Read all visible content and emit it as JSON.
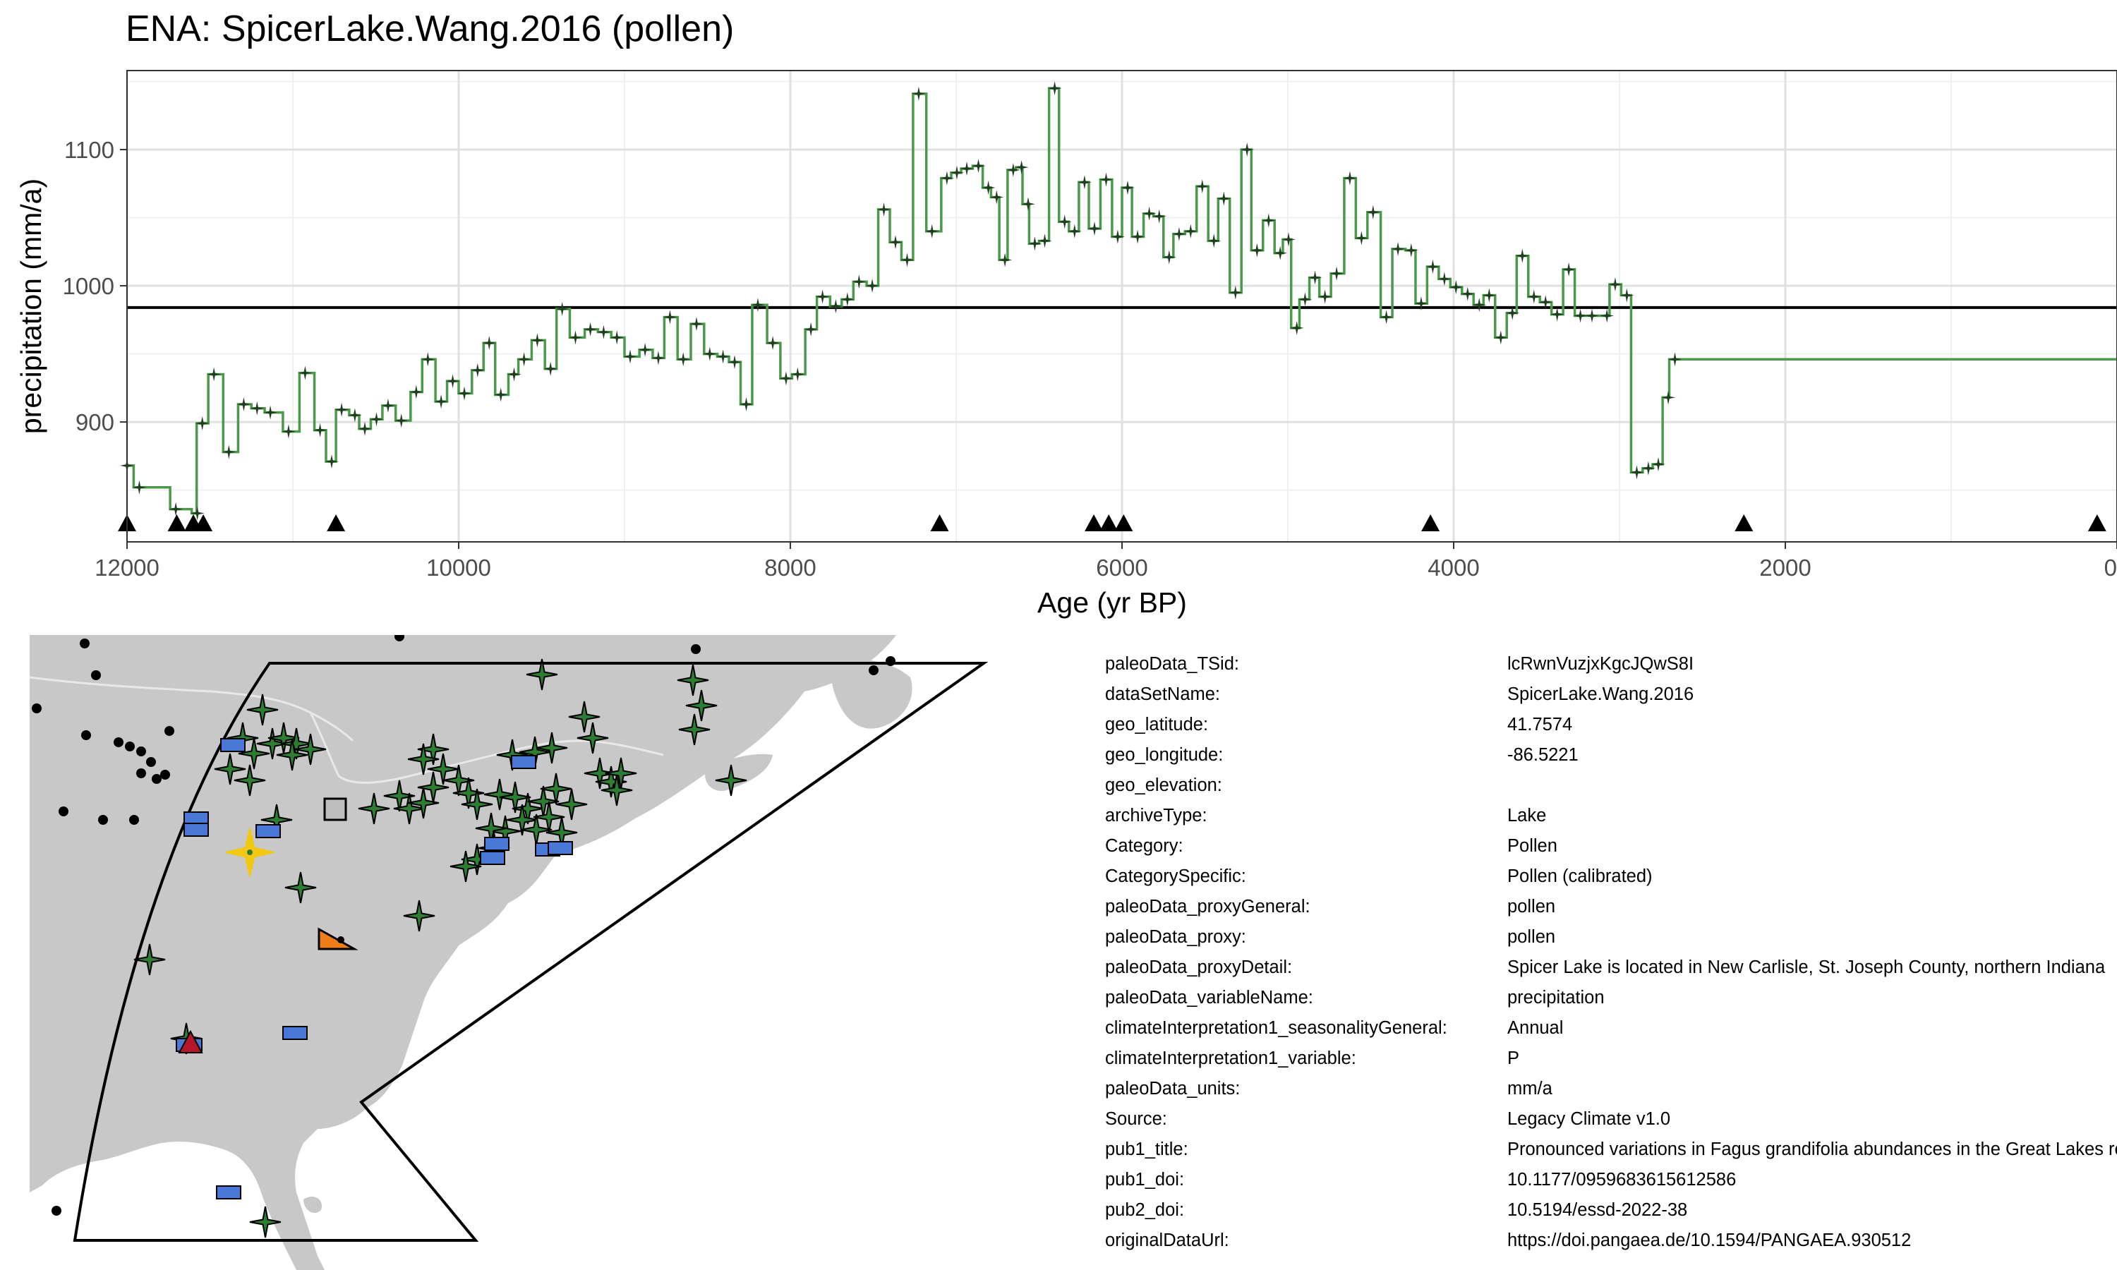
{
  "chart_data": {
    "type": "line",
    "title": "ENA: SpicerLake.Wang.2016 (pollen)",
    "xlabel": "Age (yr BP)",
    "ylabel": "precipitation (mm/a)",
    "xlim": [
      12000,
      0
    ],
    "ylim": [
      812,
      1158
    ],
    "x_reversed": true,
    "xticks": [
      12000,
      10000,
      8000,
      6000,
      4000,
      2000,
      0
    ],
    "yticks": [
      900,
      1000,
      1100
    ],
    "grid": true,
    "reference_line": 984,
    "step_color": "#4a9a4a",
    "point_color": "#1f3d1f",
    "series": [
      {
        "values": [
          [
            12000,
            868
          ],
          [
            11960,
            852
          ],
          [
            11740,
            836
          ],
          [
            11610,
            833
          ],
          [
            11580,
            899
          ],
          [
            11510,
            935
          ],
          [
            11420,
            878
          ],
          [
            11330,
            913
          ],
          [
            11250,
            910
          ],
          [
            11170,
            907
          ],
          [
            11060,
            893
          ],
          [
            10960,
            936
          ],
          [
            10870,
            894
          ],
          [
            10800,
            871
          ],
          [
            10740,
            909
          ],
          [
            10660,
            905
          ],
          [
            10600,
            895
          ],
          [
            10530,
            902
          ],
          [
            10460,
            912
          ],
          [
            10380,
            901
          ],
          [
            10290,
            922
          ],
          [
            10220,
            946
          ],
          [
            10140,
            915
          ],
          [
            10070,
            930
          ],
          [
            10000,
            921
          ],
          [
            9920,
            938
          ],
          [
            9850,
            958
          ],
          [
            9780,
            920
          ],
          [
            9700,
            935
          ],
          [
            9640,
            946
          ],
          [
            9560,
            960
          ],
          [
            9480,
            939
          ],
          [
            9410,
            983
          ],
          [
            9330,
            962
          ],
          [
            9240,
            968
          ],
          [
            9160,
            966
          ],
          [
            9080,
            962
          ],
          [
            9000,
            948
          ],
          [
            8910,
            953
          ],
          [
            8830,
            947
          ],
          [
            8760,
            977
          ],
          [
            8680,
            946
          ],
          [
            8600,
            972
          ],
          [
            8520,
            950
          ],
          [
            8440,
            948
          ],
          [
            8370,
            944
          ],
          [
            8300,
            913
          ],
          [
            8230,
            986
          ],
          [
            8140,
            958
          ],
          [
            8060,
            932
          ],
          [
            7990,
            935
          ],
          [
            7910,
            968
          ],
          [
            7840,
            992
          ],
          [
            7760,
            985
          ],
          [
            7690,
            990
          ],
          [
            7620,
            1003
          ],
          [
            7540,
            1000
          ],
          [
            7470,
            1056
          ],
          [
            7400,
            1032
          ],
          [
            7330,
            1019
          ],
          [
            7260,
            1141
          ],
          [
            7180,
            1040
          ],
          [
            7090,
            1079
          ],
          [
            7030,
            1083
          ],
          [
            6970,
            1086
          ],
          [
            6900,
            1088
          ],
          [
            6840,
            1072
          ],
          [
            6790,
            1065
          ],
          [
            6740,
            1019
          ],
          [
            6690,
            1085
          ],
          [
            6640,
            1087
          ],
          [
            6600,
            1060
          ],
          [
            6560,
            1031
          ],
          [
            6500,
            1033
          ],
          [
            6440,
            1145
          ],
          [
            6380,
            1047
          ],
          [
            6320,
            1040
          ],
          [
            6260,
            1076
          ],
          [
            6200,
            1042
          ],
          [
            6130,
            1078
          ],
          [
            6060,
            1036
          ],
          [
            6000,
            1072
          ],
          [
            5940,
            1036
          ],
          [
            5870,
            1053
          ],
          [
            5810,
            1051
          ],
          [
            5750,
            1021
          ],
          [
            5690,
            1038
          ],
          [
            5620,
            1040
          ],
          [
            5550,
            1073
          ],
          [
            5480,
            1033
          ],
          [
            5420,
            1064
          ],
          [
            5350,
            995
          ],
          [
            5280,
            1100
          ],
          [
            5220,
            1026
          ],
          [
            5150,
            1048
          ],
          [
            5080,
            1024
          ],
          [
            5030,
            1034
          ],
          [
            4980,
            969
          ],
          [
            4930,
            990
          ],
          [
            4870,
            1006
          ],
          [
            4810,
            992
          ],
          [
            4740,
            1009
          ],
          [
            4660,
            1079
          ],
          [
            4590,
            1035
          ],
          [
            4520,
            1054
          ],
          [
            4440,
            977
          ],
          [
            4370,
            1027
          ],
          [
            4290,
            1026
          ],
          [
            4230,
            987
          ],
          [
            4160,
            1014
          ],
          [
            4090,
            1005
          ],
          [
            4020,
            999
          ],
          [
            3950,
            994
          ],
          [
            3880,
            986
          ],
          [
            3820,
            993
          ],
          [
            3750,
            962
          ],
          [
            3680,
            980
          ],
          [
            3620,
            1022
          ],
          [
            3550,
            992
          ],
          [
            3480,
            988
          ],
          [
            3410,
            979
          ],
          [
            3340,
            1012
          ],
          [
            3270,
            978
          ],
          [
            3200,
            978
          ],
          [
            3110,
            978
          ],
          [
            3060,
            1001
          ],
          [
            2990,
            993
          ],
          [
            2930,
            863
          ],
          [
            2860,
            866
          ],
          [
            2800,
            869
          ],
          [
            2740,
            918
          ],
          [
            2700,
            946
          ]
        ]
      }
    ],
    "age_markers": [
      12000,
      11700,
      11600,
      11540,
      10740,
      7100,
      6170,
      6080,
      5990,
      4140,
      2250,
      120
    ]
  },
  "colors": {
    "map_land": "#c8c8c8",
    "map_border": "#e8e8e8",
    "marker_green": "#2e7d32",
    "marker_blue": "#4a78d6",
    "highlight_star": "#f2c811",
    "marker_orange": "#ef7d17",
    "marker_red": "#b5162a"
  },
  "metadata": [
    {
      "key": "paleoData_TSid:",
      "value": "lcRwnVuzjxKgcJQwS8I"
    },
    {
      "key": "dataSetName:",
      "value": "SpicerLake.Wang.2016"
    },
    {
      "key": "geo_latitude:",
      "value": "41.7574"
    },
    {
      "key": "geo_longitude:",
      "value": "-86.5221"
    },
    {
      "key": "geo_elevation:",
      "value": ""
    },
    {
      "key": "archiveType:",
      "value": "Lake"
    },
    {
      "key": "Category:",
      "value": "Pollen"
    },
    {
      "key": "CategorySpecific:",
      "value": "Pollen (calibrated)"
    },
    {
      "key": "paleoData_proxyGeneral:",
      "value": "pollen"
    },
    {
      "key": "paleoData_proxy:",
      "value": "pollen"
    },
    {
      "key": "paleoData_proxyDetail:",
      "value": "Spicer Lake is located in New Carlisle, St. Joseph County, northern Indiana"
    },
    {
      "key": "paleoData_variableName:",
      "value": "precipitation"
    },
    {
      "key": "climateInterpretation1_seasonalityGeneral:",
      "value": "Annual"
    },
    {
      "key": "climateInterpretation1_variable:",
      "value": "P"
    },
    {
      "key": "paleoData_units:",
      "value": "mm/a"
    },
    {
      "key": "Source:",
      "value": "Legacy Climate v1.0"
    },
    {
      "key": "pub1_title:",
      "value": "Pronounced variations in Fagus grandifolia abundances in the Great Lakes region during the Holocene"
    },
    {
      "key": "pub1_doi:",
      "value": "10.1177/0959683615612586"
    },
    {
      "key": "pub2_doi:",
      "value": "10.5194/essd-2022-38"
    },
    {
      "key": "originalDataUrl:",
      "value": "https://doi.pangaea.de/10.1594/PANGAEA.930512"
    }
  ]
}
